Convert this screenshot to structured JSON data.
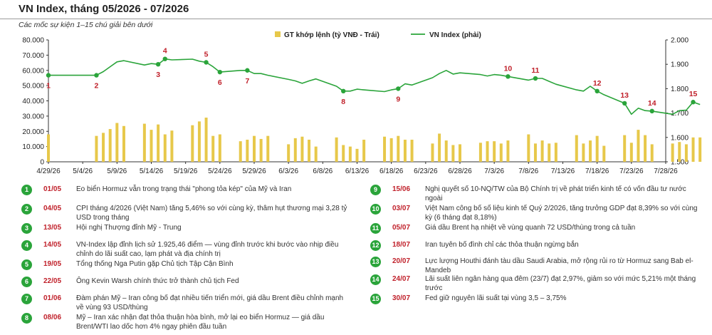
{
  "title": "VN Index, tháng 05/2026 - 07/2026",
  "subtitle": "Các mốc sự kiện 1–15 chú giải bên dưới",
  "colors": {
    "bar": "#e7c84a",
    "line": "#2aa43a",
    "marker_label": "#c0202a"
  },
  "chart_data": {
    "type": "bar+line",
    "legend": {
      "placement": "top-right",
      "bar_label": "GT khớp lệnh (tỷ VNĐ - Trái)",
      "line_label": "VN Index (phải)"
    },
    "x_ticks": [
      "4/29/26",
      "5/4/26",
      "5/9/26",
      "5/14/26",
      "5/19/26",
      "5/24/26",
      "5/29/26",
      "6/3/26",
      "6/8/26",
      "6/13/26",
      "6/18/26",
      "6/23/26",
      "6/28/26",
      "7/3/26",
      "7/8/26",
      "7/13/26",
      "7/18/26",
      "7/23/26",
      "7/28/26"
    ],
    "y_left": {
      "min": 0,
      "max": 80000,
      "step": 10000,
      "tick_labels": [
        "0",
        "10.000",
        "20.000",
        "30.000",
        "40.000",
        "50.000",
        "60.000",
        "70.000",
        "80.000"
      ]
    },
    "y_right": {
      "min": 1500,
      "max": 2000,
      "step": 100,
      "tick_labels": [
        "1.500",
        "1.600",
        "1.700",
        "1.800",
        "1.900",
        "2.000"
      ]
    },
    "grid": false,
    "bars": [
      {
        "day": 0,
        "value": 18000
      },
      {
        "day": 7,
        "value": 17000
      },
      {
        "day": 8,
        "value": 19000
      },
      {
        "day": 9,
        "value": 21500
      },
      {
        "day": 10,
        "value": 25500
      },
      {
        "day": 11,
        "value": 23500
      },
      {
        "day": 14,
        "value": 25000
      },
      {
        "day": 15,
        "value": 21000
      },
      {
        "day": 16,
        "value": 24500
      },
      {
        "day": 17,
        "value": 18000
      },
      {
        "day": 18,
        "value": 20500
      },
      {
        "day": 21,
        "value": 24000
      },
      {
        "day": 22,
        "value": 26500
      },
      {
        "day": 23,
        "value": 29000
      },
      {
        "day": 24,
        "value": 17000
      },
      {
        "day": 25,
        "value": 18000
      },
      {
        "day": 28,
        "value": 13500
      },
      {
        "day": 29,
        "value": 14500
      },
      {
        "day": 30,
        "value": 17000
      },
      {
        "day": 31,
        "value": 15000
      },
      {
        "day": 32,
        "value": 17000
      },
      {
        "day": 35,
        "value": 11500
      },
      {
        "day": 36,
        "value": 15500
      },
      {
        "day": 37,
        "value": 16500
      },
      {
        "day": 38,
        "value": 14500
      },
      {
        "day": 39,
        "value": 10000
      },
      {
        "day": 42,
        "value": 16000
      },
      {
        "day": 43,
        "value": 11000
      },
      {
        "day": 44,
        "value": 10000
      },
      {
        "day": 45,
        "value": 8500
      },
      {
        "day": 46,
        "value": 14500
      },
      {
        "day": 49,
        "value": 16500
      },
      {
        "day": 50,
        "value": 15500
      },
      {
        "day": 51,
        "value": 17000
      },
      {
        "day": 52,
        "value": 14500
      },
      {
        "day": 53,
        "value": 14500
      },
      {
        "day": 56,
        "value": 12000
      },
      {
        "day": 57,
        "value": 18500
      },
      {
        "day": 58,
        "value": 14000
      },
      {
        "day": 59,
        "value": 11000
      },
      {
        "day": 60,
        "value": 11500
      },
      {
        "day": 63,
        "value": 12500
      },
      {
        "day": 64,
        "value": 13500
      },
      {
        "day": 65,
        "value": 13500
      },
      {
        "day": 66,
        "value": 12000
      },
      {
        "day": 67,
        "value": 14000
      },
      {
        "day": 70,
        "value": 18000
      },
      {
        "day": 71,
        "value": 12000
      },
      {
        "day": 72,
        "value": 14000
      },
      {
        "day": 73,
        "value": 12000
      },
      {
        "day": 74,
        "value": 12500
      },
      {
        "day": 77,
        "value": 17500
      },
      {
        "day": 78,
        "value": 12000
      },
      {
        "day": 79,
        "value": 14000
      },
      {
        "day": 80,
        "value": 17000
      },
      {
        "day": 81,
        "value": 10500
      },
      {
        "day": 84,
        "value": 17500
      },
      {
        "day": 85,
        "value": 12500
      },
      {
        "day": 86,
        "value": 21000
      },
      {
        "day": 87,
        "value": 17500
      },
      {
        "day": 88,
        "value": 11500
      },
      {
        "day": 91,
        "value": 12000
      },
      {
        "day": 92,
        "value": 13000
      },
      {
        "day": 93,
        "value": 11500
      },
      {
        "day": 94,
        "value": 16000
      },
      {
        "day": 95,
        "value": 16000
      }
    ],
    "line": [
      {
        "day": 0,
        "value": 1855
      },
      {
        "day": 7,
        "value": 1855
      },
      {
        "day": 8,
        "value": 1870
      },
      {
        "day": 9,
        "value": 1890
      },
      {
        "day": 10,
        "value": 1910
      },
      {
        "day": 11,
        "value": 1915
      },
      {
        "day": 14,
        "value": 1897
      },
      {
        "day": 15,
        "value": 1903
      },
      {
        "day": 16,
        "value": 1900
      },
      {
        "day": 17,
        "value": 1922
      },
      {
        "day": 18,
        "value": 1918
      },
      {
        "day": 21,
        "value": 1921
      },
      {
        "day": 22,
        "value": 1913
      },
      {
        "day": 23,
        "value": 1908
      },
      {
        "day": 24,
        "value": 1890
      },
      {
        "day": 25,
        "value": 1868
      },
      {
        "day": 28,
        "value": 1875
      },
      {
        "day": 29,
        "value": 1875
      },
      {
        "day": 30,
        "value": 1862
      },
      {
        "day": 31,
        "value": 1862
      },
      {
        "day": 32,
        "value": 1855
      },
      {
        "day": 35,
        "value": 1838
      },
      {
        "day": 36,
        "value": 1832
      },
      {
        "day": 37,
        "value": 1822
      },
      {
        "day": 38,
        "value": 1832
      },
      {
        "day": 39,
        "value": 1840
      },
      {
        "day": 42,
        "value": 1810
      },
      {
        "day": 43,
        "value": 1790
      },
      {
        "day": 44,
        "value": 1790
      },
      {
        "day": 45,
        "value": 1798
      },
      {
        "day": 46,
        "value": 1795
      },
      {
        "day": 49,
        "value": 1788
      },
      {
        "day": 50,
        "value": 1795
      },
      {
        "day": 51,
        "value": 1800
      },
      {
        "day": 52,
        "value": 1820
      },
      {
        "day": 53,
        "value": 1815
      },
      {
        "day": 56,
        "value": 1845
      },
      {
        "day": 57,
        "value": 1862
      },
      {
        "day": 58,
        "value": 1875
      },
      {
        "day": 59,
        "value": 1860
      },
      {
        "day": 60,
        "value": 1865
      },
      {
        "day": 63,
        "value": 1858
      },
      {
        "day": 64,
        "value": 1852
      },
      {
        "day": 65,
        "value": 1858
      },
      {
        "day": 66,
        "value": 1855
      },
      {
        "day": 67,
        "value": 1850
      },
      {
        "day": 70,
        "value": 1835
      },
      {
        "day": 71,
        "value": 1842
      },
      {
        "day": 72,
        "value": 1842
      },
      {
        "day": 73,
        "value": 1830
      },
      {
        "day": 74,
        "value": 1818
      },
      {
        "day": 77,
        "value": 1795
      },
      {
        "day": 78,
        "value": 1790
      },
      {
        "day": 79,
        "value": 1810
      },
      {
        "day": 80,
        "value": 1790
      },
      {
        "day": 81,
        "value": 1775
      },
      {
        "day": 84,
        "value": 1740
      },
      {
        "day": 85,
        "value": 1695
      },
      {
        "day": 86,
        "value": 1720
      },
      {
        "day": 87,
        "value": 1710
      },
      {
        "day": 88,
        "value": 1708
      },
      {
        "day": 91,
        "value": 1695
      },
      {
        "day": 92,
        "value": 1710
      },
      {
        "day": 93,
        "value": 1712
      },
      {
        "day": 94,
        "value": 1745
      },
      {
        "day": 95,
        "value": 1735
      }
    ],
    "markers": [
      {
        "label": "1",
        "day": 0,
        "value": 1855,
        "pos": "below"
      },
      {
        "label": "2",
        "day": 7,
        "value": 1855,
        "pos": "below"
      },
      {
        "label": "3",
        "day": 16,
        "value": 1900,
        "pos": "below"
      },
      {
        "label": "4",
        "day": 17,
        "value": 1922,
        "pos": "above"
      },
      {
        "label": "5",
        "day": 23,
        "value": 1908,
        "pos": "above"
      },
      {
        "label": "6",
        "day": 25,
        "value": 1868,
        "pos": "below"
      },
      {
        "label": "7",
        "day": 29,
        "value": 1875,
        "pos": "below"
      },
      {
        "label": "8",
        "day": 43,
        "value": 1790,
        "pos": "below"
      },
      {
        "label": "9",
        "day": 51,
        "value": 1800,
        "pos": "below"
      },
      {
        "label": "10",
        "day": 67,
        "value": 1850,
        "pos": "above"
      },
      {
        "label": "11",
        "day": 71,
        "value": 1842,
        "pos": "above"
      },
      {
        "label": "12",
        "day": 80,
        "value": 1790,
        "pos": "above"
      },
      {
        "label": "13",
        "day": 84,
        "value": 1740,
        "pos": "above"
      },
      {
        "label": "14",
        "day": 88,
        "value": 1708,
        "pos": "above"
      },
      {
        "label": "15",
        "day": 94,
        "value": 1745,
        "pos": "above"
      }
    ]
  },
  "events_left": [
    {
      "num": "1",
      "date": "01/05",
      "text": "Eo biển Hormuz vẫn trong trạng thái \"phong tỏa kép\" của Mỹ và Iran"
    },
    {
      "num": "2",
      "date": "04/05",
      "text": "CPI tháng 4/2026 (Việt Nam) tăng 5,46% so với cùng kỳ, thâm hụt thương mại 3,28 tỷ USD trong tháng"
    },
    {
      "num": "3",
      "date": "13/05",
      "text": "Hội nghị Thượng đỉnh Mỹ - Trung"
    },
    {
      "num": "4",
      "date": "14/05",
      "text": "VN-Index lập đỉnh lịch sử 1.925,46 điểm — vùng đỉnh trước khi bước vào nhịp điều chỉnh do lãi suất cao, lạm phát và địa chính trị"
    },
    {
      "num": "5",
      "date": "19/05",
      "text": "Tổng thống Nga Putin gặp Chủ tịch Tập Cận Bình"
    },
    {
      "num": "6",
      "date": "22/05",
      "text": "Ông Kevin Warsh chính thức trở thành chủ tịch Fed"
    },
    {
      "num": "7",
      "date": "01/06",
      "text": "Đàm phán Mỹ – Iran công bố đạt nhiều tiến triển mới, giá dầu Brent điều chỉnh mạnh về vùng 93 USD/thùng"
    },
    {
      "num": "8",
      "date": "08/06",
      "text": "Mỹ – Iran xác nhận đạt thỏa thuận hòa bình, mở lại eo biển Hormuz — giá dầu Brent/WTI lao dốc hơn 4% ngay phiên đầu tuần"
    }
  ],
  "events_right": [
    {
      "num": "9",
      "date": "15/06",
      "text": "Nghị quyết số 10-NQ/TW của Bộ Chính trị về phát triển kinh tế có vốn đầu tư nước ngoài"
    },
    {
      "num": "10",
      "date": "03/07",
      "text": "Việt Nam công bố số liệu kinh tế Quý 2/2026, tăng trưởng GDP đạt 8,39% so với cùng kỳ (6 tháng đạt 8,18%)"
    },
    {
      "num": "11",
      "date": "05/07",
      "text": "Giá dầu Brent hạ nhiệt về vùng quanh 72 USD/thùng trong cả tuần"
    },
    {
      "num": "12",
      "date": "18/07",
      "text": "Iran tuyên bố đình chỉ các thỏa thuận ngừng bắn"
    },
    {
      "num": "13",
      "date": "20/07",
      "text": "Lực lượng Houthi đánh tàu dầu Saudi Arabia, mở rộng rủi ro từ Hormuz sang Bab el-Mandeb"
    },
    {
      "num": "14",
      "date": "24/07",
      "text": "Lãi suất liên ngân hàng qua đêm (23/7) đạt 2,97%, giảm so với mức 5,21% một tháng trước"
    },
    {
      "num": "15",
      "date": "30/07",
      "text": "Fed giữ nguyên lãi suất tại vùng 3,5 – 3,75%"
    }
  ]
}
